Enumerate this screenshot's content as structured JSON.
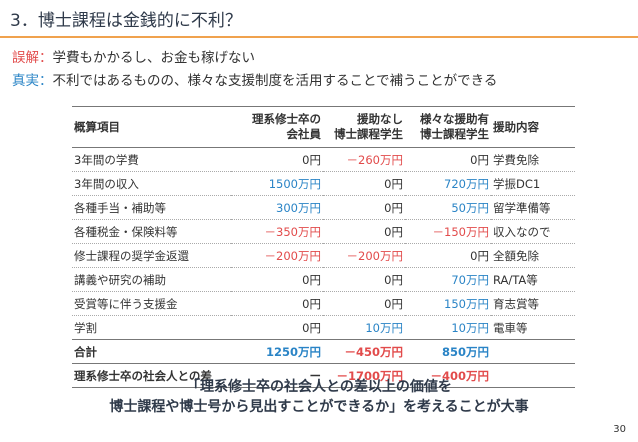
{
  "title": "3．博士課程は金銭的に不利？",
  "misconception": {
    "tag": "誤解",
    "sep": "：",
    "text": "学費もかかるし、お金も稼げない"
  },
  "truth": {
    "tag": "真実",
    "sep": "：",
    "text": "不利ではあるものの、様々な支援制度を活用することで補うことができる"
  },
  "table": {
    "headers": [
      "概算項目",
      "理系修士卒の会社員",
      "援助なし博士課程学生",
      "様々な援助有博士課程学生",
      "援助内容"
    ],
    "header_lines": [
      [
        "概算項目"
      ],
      [
        "理系修士卒の",
        "会社員"
      ],
      [
        "援助なし",
        "博士課程学生"
      ],
      [
        "様々な援助有",
        "博士課程学生"
      ],
      [
        "援助内容"
      ]
    ],
    "rows": [
      [
        "3年間の学費",
        "0円",
        "－260万円",
        "0円",
        "学費免除"
      ],
      [
        "3年間の収入",
        "1500万円",
        "0円",
        "720万円",
        "学振DC1"
      ],
      [
        "各種手当・補助等",
        "300万円",
        "0円",
        "50万円",
        "留学準備等"
      ],
      [
        "各種税金・保険料等",
        "－350万円",
        "0円",
        "－150万円",
        "収入なので"
      ],
      [
        "修士課程の奨学金返還",
        "－200万円",
        "－200万円",
        "0円",
        "全額免除"
      ],
      [
        "講義や研究の補助",
        "0円",
        "0円",
        "70万円",
        "RA/TA等"
      ],
      [
        "受賞等に伴う支援金",
        "0円",
        "0円",
        "150万円",
        "育志賞等"
      ],
      [
        "学割",
        "0円",
        "10万円",
        "10万円",
        "電車等"
      ]
    ],
    "row_colors": [
      [
        "dark",
        "dark",
        "red",
        "dark",
        "dark"
      ],
      [
        "dark",
        "blue",
        "dark",
        "blue",
        "dark"
      ],
      [
        "dark",
        "blue",
        "dark",
        "blue",
        "dark"
      ],
      [
        "dark",
        "red",
        "dark",
        "red",
        "dark"
      ],
      [
        "dark",
        "red",
        "red",
        "dark",
        "dark"
      ],
      [
        "dark",
        "dark",
        "dark",
        "blue",
        "dark"
      ],
      [
        "dark",
        "dark",
        "dark",
        "blue",
        "dark"
      ],
      [
        "dark",
        "dark",
        "blue",
        "blue",
        "dark"
      ]
    ],
    "total": [
      "合計",
      "1250万円",
      "－450万円",
      "850万円",
      ""
    ],
    "total_colors": [
      "dark",
      "blue",
      "red",
      "blue",
      "dark"
    ],
    "difference": [
      "理系修士卒の社会人との差",
      "ー",
      "－1700万円",
      "－400万円",
      ""
    ],
    "difference_colors": [
      "dark",
      "dark",
      "red",
      "red",
      "dark"
    ]
  },
  "conclusion": {
    "line1": "「理系修士卒の社会人との差以上の価値を",
    "line2": "博士課程や博士号から見出すことができるか」を考えることが大事"
  },
  "page_number": "30",
  "colors": {
    "accent_rule": "#f0a24e",
    "red": "#e24b4b",
    "blue": "#2a84c6"
  }
}
